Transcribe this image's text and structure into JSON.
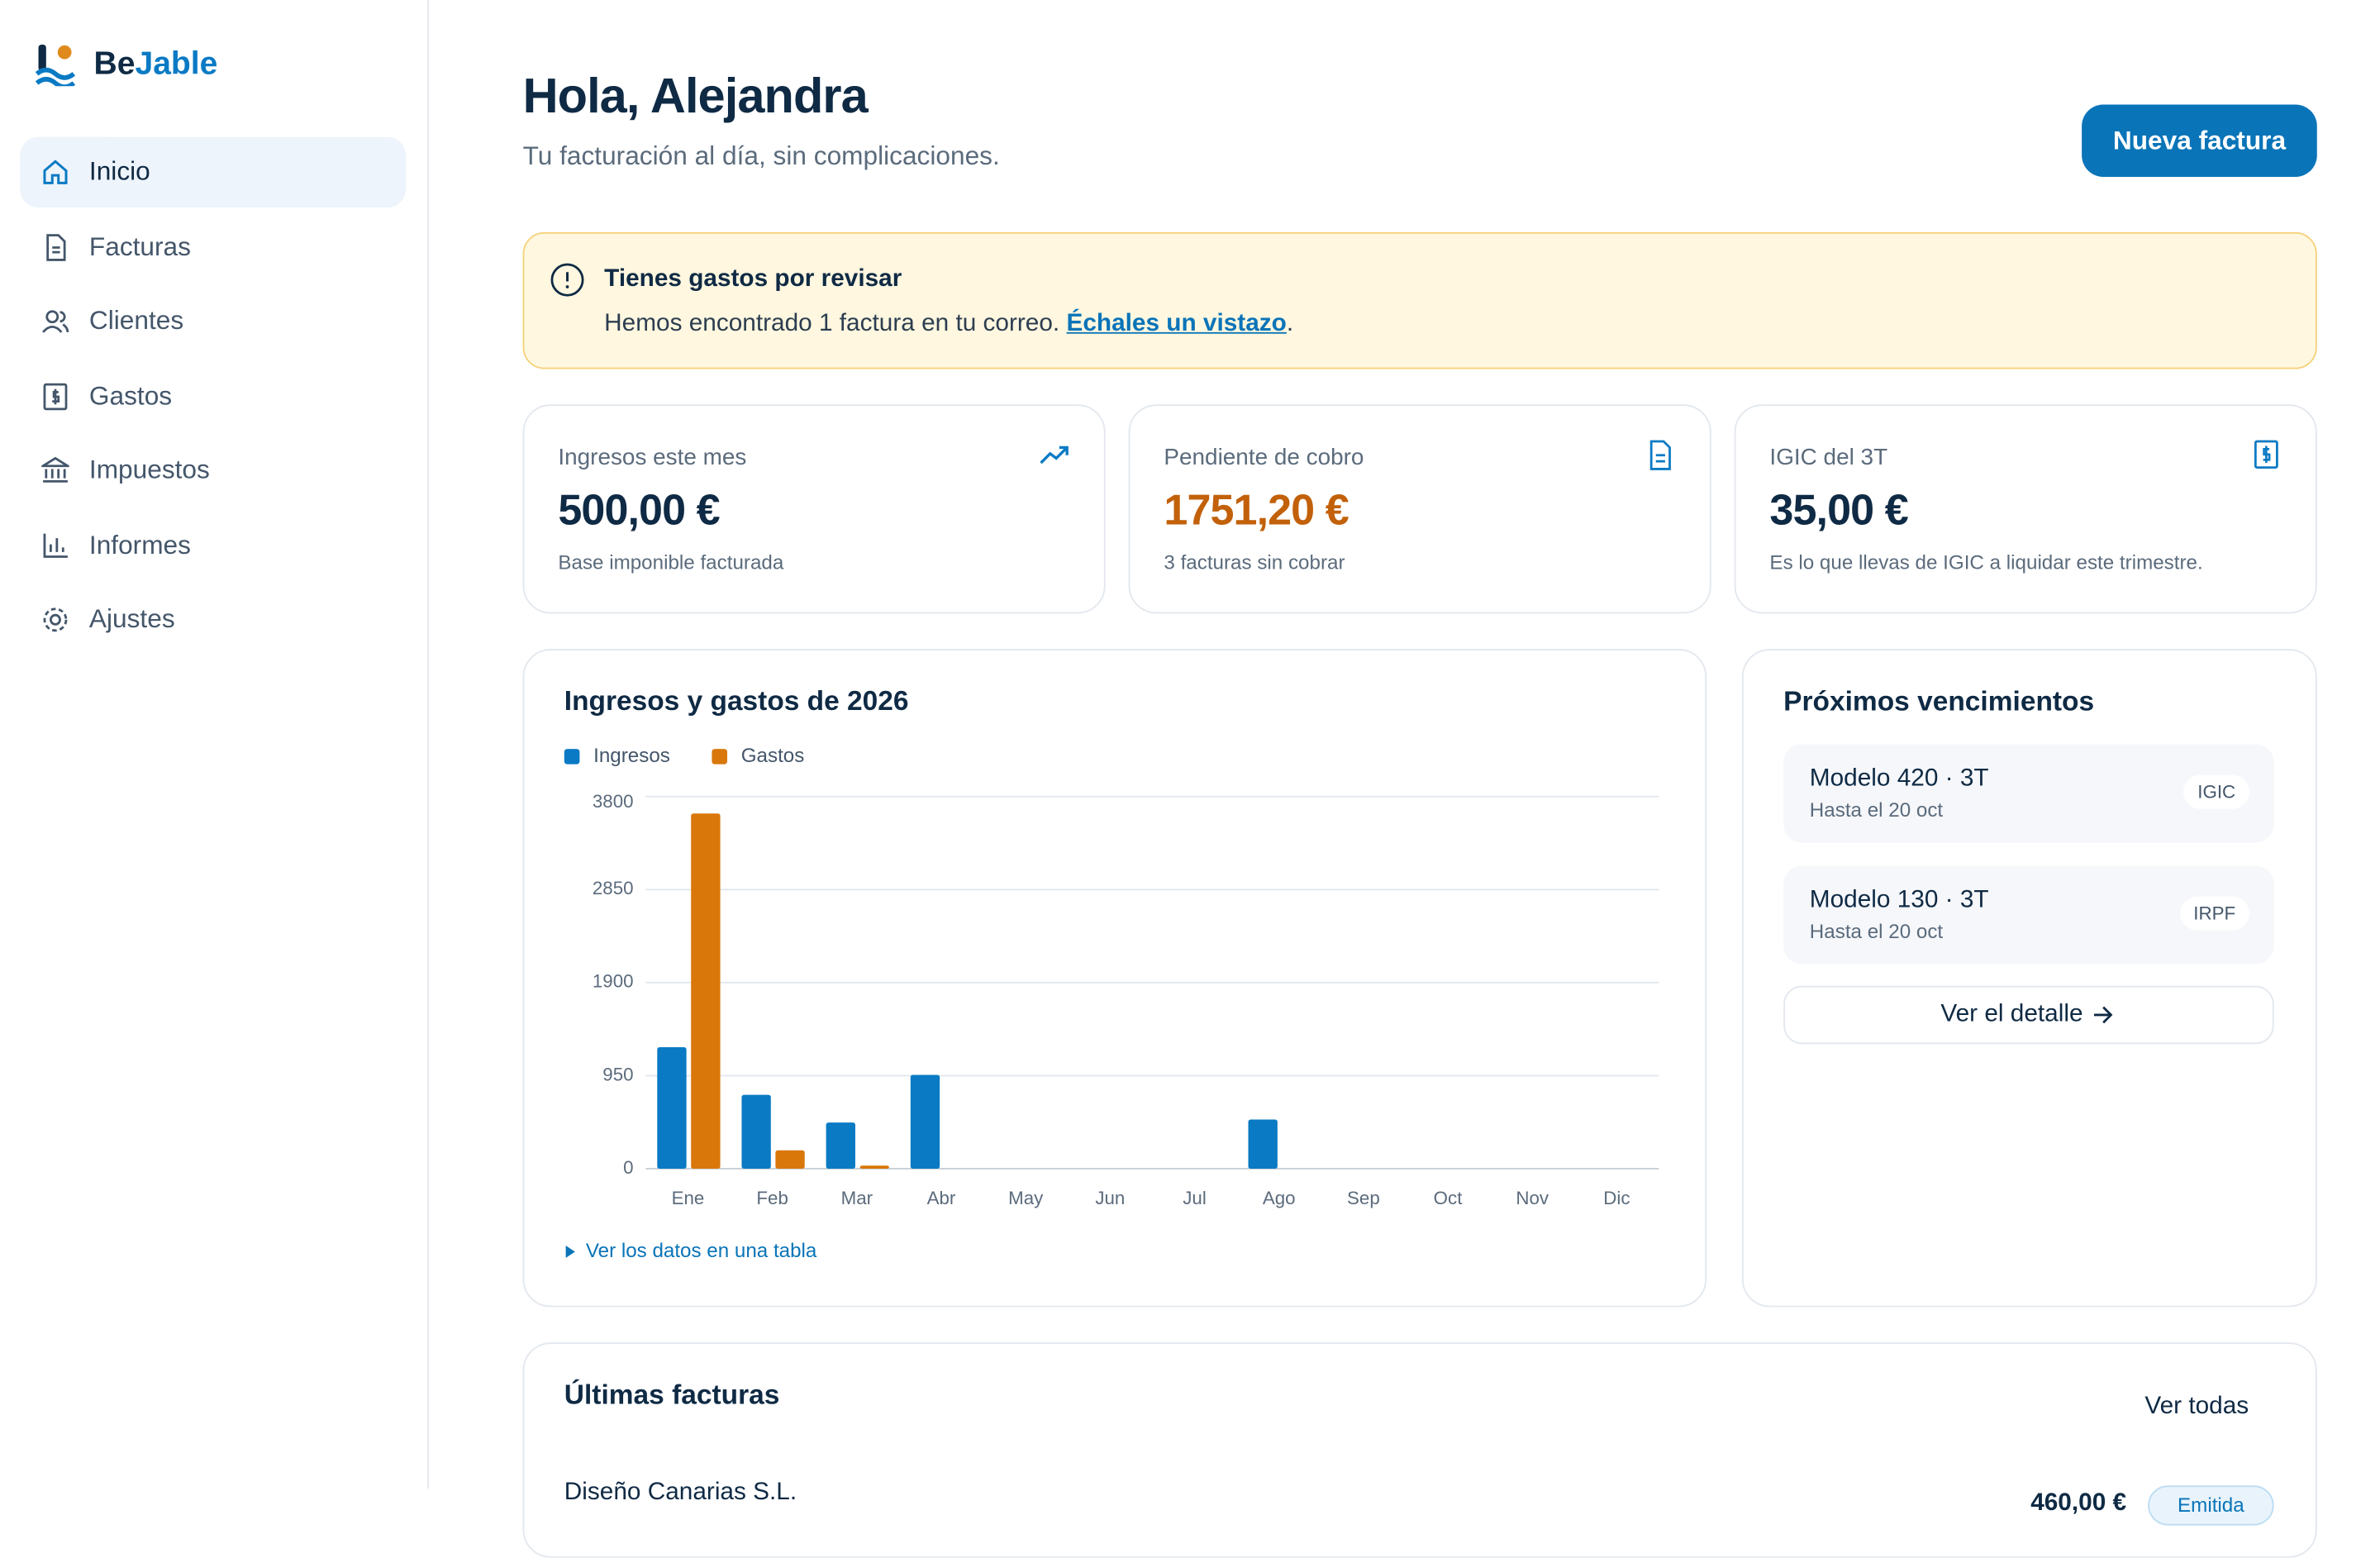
{
  "brand": {
    "part1": "Be",
    "part2": "Jable"
  },
  "nav": [
    "Inicio",
    "Facturas",
    "Clientes",
    "Gastos",
    "Impuestos",
    "Informes",
    "Ajustes"
  ],
  "header": {
    "title": "Hola, Alejandra",
    "subtitle": "Tu facturación al día, sin complicaciones.",
    "button": "Nueva factura"
  },
  "alert": {
    "title": "Tienes gastos por revisar",
    "text": "Hemos encontrado 1 factura en tu correo.",
    "link": "Échales un vistazo",
    "end": "."
  },
  "kpis": [
    {
      "label": "Ingresos este mes",
      "value": "500,00 €",
      "note": "Base imponible facturada"
    },
    {
      "label": "Pendiente de cobro",
      "value": "1751,20 €",
      "note": "3 facturas sin cobrar"
    },
    {
      "label": "IGIC del 3T",
      "value": "35,00 €",
      "note": "Es lo que llevas de IGIC a liquidar este trimestre."
    }
  ],
  "chart_data": {
    "type": "bar",
    "title": "Ingresos y gastos de 2026",
    "categories": [
      "Ene",
      "Feb",
      "Mar",
      "Abr",
      "May",
      "Jun",
      "Jul",
      "Ago",
      "Sep",
      "Oct",
      "Nov",
      "Dic"
    ],
    "series": [
      {
        "name": "Ingresos",
        "color": "#0a7ac4",
        "values": [
          1240,
          754,
          471,
          958,
          0,
          0,
          0,
          502,
          0,
          0,
          0,
          0
        ]
      },
      {
        "name": "Gastos",
        "color": "#d9770a",
        "values": [
          3627,
          188,
          31,
          0,
          0,
          0,
          0,
          0,
          0,
          0,
          0,
          0
        ]
      }
    ],
    "ylim": [
      0,
      3800
    ],
    "yticks": [
      0,
      950,
      1900,
      2850,
      3800
    ],
    "grid": true,
    "legend": "top-left",
    "table_link": "Ver los datos en una tabla"
  },
  "deadlines": {
    "title": "Próximos vencimientos",
    "items": [
      {
        "name": "Modelo 420 · 3T",
        "date": "Hasta el 20 oct",
        "tag": "IGIC"
      },
      {
        "name": "Modelo 130 · 3T",
        "date": "Hasta el 20 oct",
        "tag": "IRPF"
      }
    ],
    "button": "Ver el detalle"
  },
  "invoices": {
    "title": "Últimas facturas",
    "link": "Ver todas",
    "rows": [
      {
        "client": "Diseño Canarias S.L.",
        "amount": "460,00 €",
        "status": "Emitida"
      }
    ]
  }
}
